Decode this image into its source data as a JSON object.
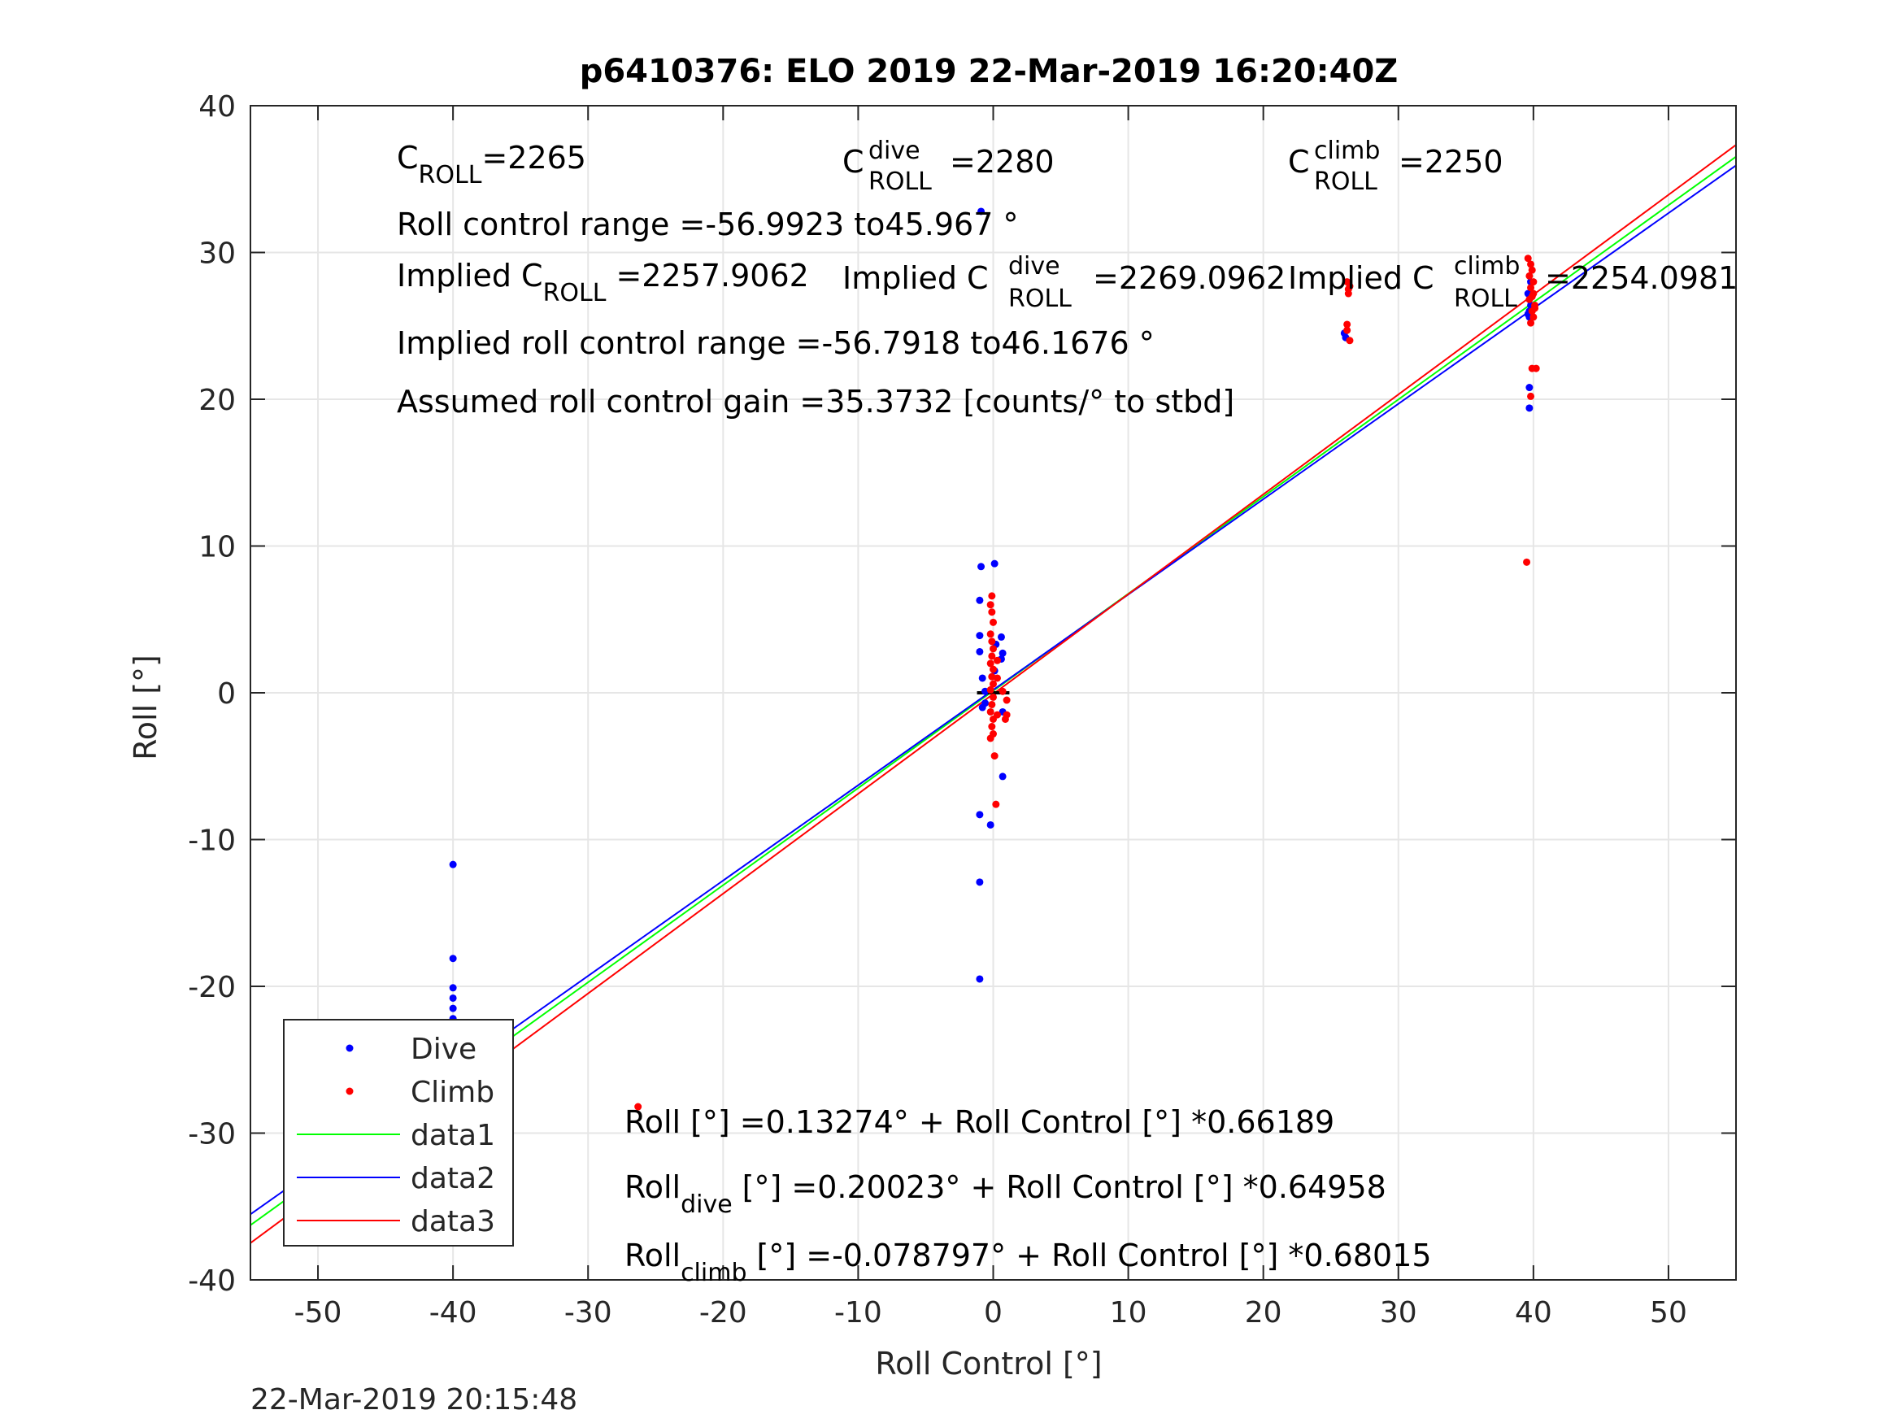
{
  "chart_data": {
    "type": "scatter",
    "title": "p6410376: ELO 2019 22-Mar-2019 16:20:40Z",
    "xlabel": "Roll Control [°]",
    "ylabel": "Roll [°]",
    "xlim": [
      -55,
      55
    ],
    "ylim": [
      -40,
      40
    ],
    "xticks": [
      "-50",
      "-40",
      "-30",
      "-20",
      "-10",
      "0",
      "10",
      "20",
      "30",
      "40",
      "50"
    ],
    "yticks": [
      "-40",
      "-30",
      "-20",
      "-10",
      "0",
      "10",
      "20",
      "30",
      "40"
    ],
    "grid": true,
    "legend_position": "bottom-left",
    "timestamp": "22-Mar-2019 20:15:48",
    "colors": {
      "dive": "#0000ff",
      "climb": "#ff0000",
      "data1": "#00ff00",
      "data2": "#0000ff",
      "data3": "#ff0000",
      "zero_line": "#000000",
      "grid": "#e6e6e6"
    },
    "series": [
      {
        "name": "Dive",
        "kind": "points",
        "color": "#0000ff",
        "points": [
          [
            -40,
            -11.7
          ],
          [
            -40,
            -18.1
          ],
          [
            -40,
            -20.1
          ],
          [
            -40,
            -20.8
          ],
          [
            -40,
            -21.5
          ],
          [
            -40,
            -22.2
          ],
          [
            -40,
            -22.8
          ],
          [
            -40,
            -23.4
          ],
          [
            -40,
            -24.0
          ],
          [
            -40,
            -24.6
          ],
          [
            -40,
            -25.2
          ],
          [
            -40,
            -25.7
          ],
          [
            -40,
            -26.2
          ],
          [
            -40,
            -26.8
          ],
          [
            -40,
            -27.3
          ],
          [
            -40,
            -27.9
          ],
          [
            -40,
            -28.4
          ],
          [
            -40,
            -29.0
          ],
          [
            -39.6,
            -26.0
          ],
          [
            -39.6,
            -27.0
          ],
          [
            -39.4,
            -28.0
          ],
          [
            -39.3,
            -26.5
          ],
          [
            -39.7,
            -25.5
          ],
          [
            -0.9,
            8.6
          ],
          [
            0.1,
            8.8
          ],
          [
            -1.0,
            6.3
          ],
          [
            -1.0,
            3.9
          ],
          [
            -1.0,
            2.8
          ],
          [
            -0.8,
            1.0
          ],
          [
            -0.6,
            -0.7
          ],
          [
            -0.8,
            -1.0
          ],
          [
            -0.6,
            0.1
          ],
          [
            0.1,
            1.5
          ],
          [
            0.2,
            3.3
          ],
          [
            0.6,
            3.8
          ],
          [
            0.7,
            2.7
          ],
          [
            0.6,
            2.3
          ],
          [
            0.7,
            -1.3
          ],
          [
            0.7,
            -5.7
          ],
          [
            -1.0,
            -8.3
          ],
          [
            -0.2,
            -9.0
          ],
          [
            -1.0,
            -12.9
          ],
          [
            -1.0,
            -19.5
          ],
          [
            -0.9,
            32.8
          ],
          [
            26.0,
            24.5
          ],
          [
            26.1,
            24.2
          ],
          [
            39.7,
            20.8
          ],
          [
            39.7,
            19.4
          ],
          [
            39.7,
            26.0
          ],
          [
            39.7,
            25.6
          ],
          [
            39.8,
            26.4
          ],
          [
            39.6,
            27.2
          ],
          [
            39.6,
            25.8
          ],
          [
            39.8,
            28.0
          ]
        ]
      },
      {
        "name": "Climb",
        "kind": "points",
        "color": "#ff0000",
        "points": [
          [
            -40,
            -28.6
          ],
          [
            -40,
            -29.2
          ],
          [
            -40,
            -29.8
          ],
          [
            -40,
            -30.3
          ],
          [
            -40,
            -27.5
          ],
          [
            -26.3,
            -28.2
          ],
          [
            -0.1,
            6.6
          ],
          [
            -0.2,
            6.0
          ],
          [
            -0.1,
            5.5
          ],
          [
            0.0,
            4.8
          ],
          [
            -0.2,
            4.0
          ],
          [
            -0.1,
            3.5
          ],
          [
            0.0,
            3.0
          ],
          [
            -0.1,
            2.5
          ],
          [
            -0.2,
            2.0
          ],
          [
            0.0,
            1.6
          ],
          [
            -0.1,
            1.1
          ],
          [
            0.0,
            0.6
          ],
          [
            -0.2,
            0.2
          ],
          [
            0.0,
            -0.3
          ],
          [
            -0.1,
            -0.8
          ],
          [
            -0.2,
            -1.3
          ],
          [
            0.0,
            -1.8
          ],
          [
            -0.1,
            -2.3
          ],
          [
            0.0,
            -2.8
          ],
          [
            -0.2,
            -3.1
          ],
          [
            0.1,
            -4.3
          ],
          [
            0.2,
            -7.6
          ],
          [
            0.3,
            2.2
          ],
          [
            0.3,
            1.0
          ],
          [
            0.3,
            -1.5
          ],
          [
            0.7,
            0.1
          ],
          [
            1.0,
            -0.5
          ],
          [
            1.0,
            -1.5
          ],
          [
            0.9,
            -1.8
          ],
          [
            26.2,
            28.0
          ],
          [
            26.3,
            27.5
          ],
          [
            26.3,
            27.2
          ],
          [
            26.4,
            27.7
          ],
          [
            26.2,
            25.1
          ],
          [
            26.2,
            24.7
          ],
          [
            26.4,
            24.0
          ],
          [
            39.6,
            29.6
          ],
          [
            39.8,
            29.2
          ],
          [
            39.9,
            28.8
          ],
          [
            39.7,
            28.4
          ],
          [
            40.0,
            28.0
          ],
          [
            39.8,
            27.6
          ],
          [
            40.0,
            27.2
          ],
          [
            39.7,
            26.8
          ],
          [
            40.1,
            26.4
          ],
          [
            39.9,
            26.0
          ],
          [
            40.0,
            25.6
          ],
          [
            39.8,
            25.2
          ],
          [
            39.9,
            27.0
          ],
          [
            40.1,
            26.2
          ],
          [
            39.9,
            22.1
          ],
          [
            40.2,
            22.1
          ],
          [
            39.8,
            20.2
          ],
          [
            39.5,
            8.9
          ]
        ]
      },
      {
        "name": "data1",
        "kind": "line",
        "color": "#00ff00",
        "points": [
          [
            -55,
            -36.27
          ],
          [
            55,
            36.53
          ]
        ]
      },
      {
        "name": "data2",
        "kind": "line",
        "color": "#0000ff",
        "points": [
          [
            -55,
            -35.53
          ],
          [
            55,
            35.93
          ]
        ]
      },
      {
        "name": "data3",
        "kind": "line",
        "color": "#ff0000",
        "points": [
          [
            -55,
            -37.49
          ],
          [
            55,
            37.33
          ]
        ]
      },
      {
        "name": "",
        "kind": "zero",
        "color": "#000000",
        "points": [
          [
            -1.2,
            0
          ],
          [
            1.2,
            0
          ]
        ]
      }
    ],
    "legend_items": [
      {
        "name": "Dive",
        "type": "marker",
        "color": "#0000ff"
      },
      {
        "name": "Climb",
        "type": "marker",
        "color": "#ff0000"
      },
      {
        "name": "data1",
        "type": "line",
        "color": "#00ff00"
      },
      {
        "name": "data2",
        "type": "line",
        "color": "#0000ff"
      },
      {
        "name": "data3",
        "type": "line",
        "color": "#ff0000"
      }
    ],
    "annotations": {
      "c_roll": {
        "base": "C",
        "sub": "ROLL",
        "rest": "=2265"
      },
      "c_roll_dive": {
        "base": "C",
        "sup": "dive",
        "sub": "ROLL",
        "rest": "=2280"
      },
      "c_roll_climb": {
        "base": "C",
        "sup": "climb",
        "sub": "ROLL",
        "rest": "=2250"
      },
      "roll_control_range": "Roll control range =-56.9923 to45.967 °",
      "implied_c_roll": {
        "base": "Implied C",
        "sub": "ROLL",
        "rest": "=2257.9062"
      },
      "implied_c_roll_dive": {
        "base": "Implied C",
        "sup": "dive",
        "sub": "ROLL",
        "rest": "=2269.0962"
      },
      "implied_c_roll_climb": {
        "base": "Implied C",
        "sup": "climb",
        "sub": "ROLL",
        "rest": "=2254.0981"
      },
      "implied_range": "Implied roll control range =-56.7918 to46.1676 °",
      "gain": "Assumed roll control gain =35.3732 [counts/° to stbd]",
      "fit_all": {
        "base": "Roll",
        "rest": "[°] =0.13274° + Roll Control [°] *0.66189"
      },
      "fit_dive": {
        "base": "Roll",
        "sub": "dive",
        "rest": "[°] =0.20023° + Roll Control [°] *0.64958"
      },
      "fit_climb": {
        "base": "Roll",
        "sub": "climb",
        "rest": "[°] =-0.078797° + Roll Control [°] *0.68015"
      }
    }
  }
}
